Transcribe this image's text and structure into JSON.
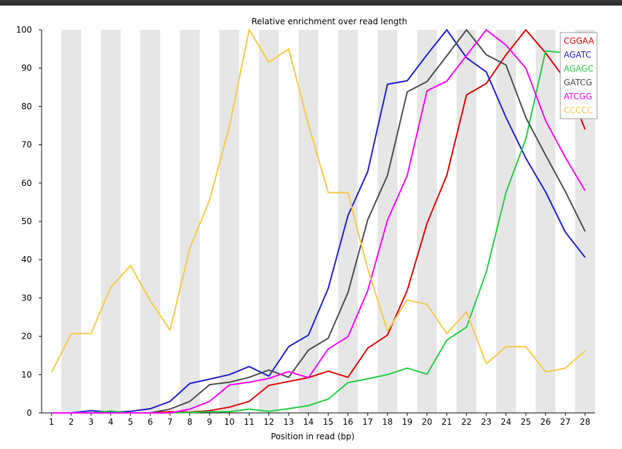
{
  "chart_data": {
    "type": "line",
    "title": "Relative enrichment over read length",
    "xlabel": "Position in read (bp)",
    "ylabel": "",
    "categories": [
      "1",
      "2",
      "3",
      "4",
      "5",
      "6",
      "7",
      "8",
      "9",
      "10",
      "11",
      "12",
      "13",
      "14",
      "15",
      "16",
      "17",
      "18",
      "19",
      "20",
      "21",
      "22",
      "23",
      "24",
      "25",
      "26",
      "27",
      "28"
    ],
    "y_ticks": [
      0,
      10,
      20,
      30,
      40,
      50,
      60,
      70,
      80,
      90,
      100
    ],
    "ylim": [
      0,
      100
    ],
    "grid": "alternating vertical gray bands",
    "legend_position": "top-right",
    "series": [
      {
        "name": "CGGAA",
        "color": "#e00000",
        "values": [
          0,
          0,
          0,
          0,
          0,
          0,
          0.3,
          0.2,
          0.6,
          1.5,
          3,
          7.2,
          8.2,
          9.2,
          10.9,
          9.3,
          16.9,
          20.3,
          32,
          49.5,
          62,
          83,
          86,
          93.5,
          100,
          94,
          87,
          74
        ]
      },
      {
        "name": "AGATC",
        "color": "#1c1cd0",
        "values": [
          0,
          0,
          0.6,
          0.2,
          0.4,
          1.1,
          3,
          7.7,
          8.8,
          10,
          12.1,
          9.6,
          17.3,
          20.3,
          32.5,
          51.5,
          63,
          85.8,
          86.7,
          93.5,
          100,
          92.7,
          89,
          77.1,
          66.5,
          57.7,
          47.2,
          40.6
        ]
      },
      {
        "name": "AGAGC",
        "color": "#22cc44",
        "values": [
          0,
          0,
          0,
          0.5,
          0,
          0,
          0,
          0.1,
          0.3,
          0.3,
          1,
          0.4,
          1.1,
          1.9,
          3.6,
          7.9,
          8.9,
          10,
          11.7,
          10.1,
          19,
          22.4,
          36.8,
          57.6,
          71.5,
          94.5,
          94,
          93.5
        ]
      },
      {
        "name": "GATCG",
        "color": "#4a4a4a",
        "values": [
          0,
          0,
          0,
          0,
          0,
          0,
          1,
          3,
          7.4,
          8,
          9.3,
          11.2,
          9.3,
          16.4,
          19.5,
          31.4,
          50.4,
          62,
          83.8,
          86.5,
          93.2,
          100,
          93.5,
          90.8,
          77.1,
          67.3,
          57.8,
          47.4
        ]
      },
      {
        "name": "ATCGG",
        "color": "#ff00ff",
        "values": [
          0,
          0,
          0,
          0,
          0,
          0,
          0,
          1,
          3,
          7.3,
          8,
          9,
          10.8,
          9.2,
          16.7,
          19.9,
          31.9,
          50.3,
          62,
          84.1,
          86.6,
          93.3,
          100,
          96,
          90,
          76.3,
          66.7,
          58
        ]
      },
      {
        "name": "CCCCC",
        "color": "#f7c846",
        "values": [
          10.6,
          20.7,
          20.7,
          32.8,
          38.5,
          29.3,
          21.6,
          43,
          55.6,
          74.8,
          100,
          91.5,
          95,
          75.3,
          57.5,
          57.5,
          37.6,
          21.4,
          29.5,
          28.3,
          20.7,
          26.4,
          12.8,
          17.3,
          17.3,
          10.7,
          11.7,
          16.2
        ]
      }
    ]
  }
}
